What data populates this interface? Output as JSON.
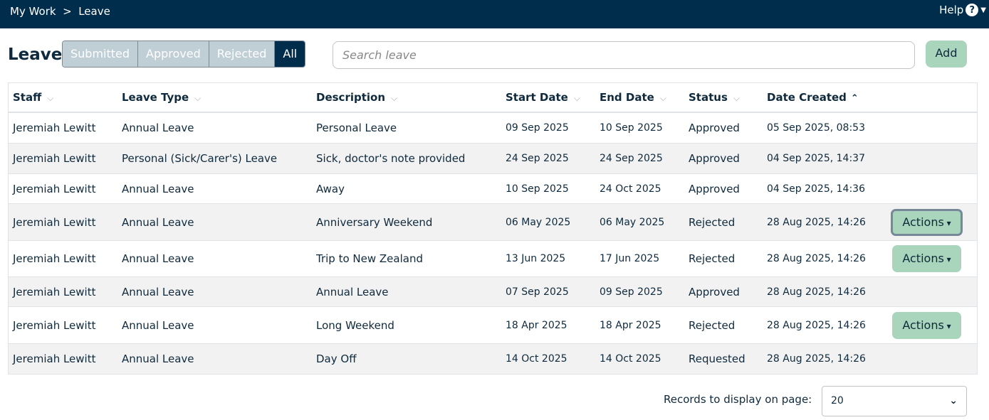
{
  "topbar": {
    "breadcrumb": "My Work  >  Leave",
    "help_label": "Help",
    "help_icon": "?"
  },
  "page": {
    "title": "Leave"
  },
  "filters": [
    {
      "label": "Submitted",
      "active": false
    },
    {
      "label": "Approved",
      "active": false
    },
    {
      "label": "Rejected",
      "active": false
    },
    {
      "label": "All",
      "active": true
    }
  ],
  "search": {
    "placeholder": "Search leave",
    "value": ""
  },
  "add_label": "Add",
  "table": {
    "columns": [
      "Staff",
      "Leave Type",
      "Description",
      "Start Date",
      "End Date",
      "Status",
      "Date Created"
    ],
    "sort": {
      "column": "Date Created",
      "direction": "ascending"
    },
    "rows": [
      {
        "staff": "Jeremiah Lewitt",
        "type": "Annual Leave",
        "desc": "Personal Leave",
        "start": "09 Sep 2025",
        "end": "10 Sep 2025",
        "status": "Approved",
        "created": "05 Sep 2025, 08:53"
      },
      {
        "staff": "Jeremiah Lewitt",
        "type": "Personal (Sick/Carer's) Leave",
        "desc": "Sick, doctor's note provided",
        "start": "24 Sep 2025",
        "end": "24 Sep 2025",
        "status": "Approved",
        "created": "04 Sep 2025, 14:37"
      },
      {
        "staff": "Jeremiah Lewitt",
        "type": "Annual Leave",
        "desc": "Away",
        "start": "10 Sep 2025",
        "end": "24 Oct 2025",
        "status": "Approved",
        "created": "04 Sep 2025, 14:36"
      },
      {
        "staff": "Jeremiah Lewitt",
        "type": "Annual Leave",
        "desc": "Anniversary Weekend",
        "start": "06 May 2025",
        "end": "06 May 2025",
        "status": "Rejected",
        "created": "28 Aug 2025, 14:26",
        "action": "Actions"
      },
      {
        "staff": "Jeremiah Lewitt",
        "type": "Annual Leave",
        "desc": "Trip to New Zealand",
        "start": "13 Jun 2025",
        "end": "17 Jun 2025",
        "status": "Rejected",
        "created": "28 Aug 2025, 14:26",
        "action": "Actions"
      },
      {
        "staff": "Jeremiah Lewitt",
        "type": "Annual Leave",
        "desc": "Annual Leave",
        "start": "07 Sep 2025",
        "end": "09 Sep 2025",
        "status": "Approved",
        "created": "28 Aug 2025, 14:26"
      },
      {
        "staff": "Jeremiah Lewitt",
        "type": "Annual Leave",
        "desc": "Long Weekend",
        "start": "18 Apr 2025",
        "end": "18 Apr 2025",
        "status": "Rejected",
        "created": "28 Aug 2025, 14:26",
        "action": "Actions"
      },
      {
        "staff": "Jeremiah Lewitt",
        "type": "Annual Leave",
        "desc": "Day Off",
        "start": "14 Oct 2025",
        "end": "14 Oct 2025",
        "status": "Requested",
        "created": "28 Aug 2025, 14:26"
      }
    ]
  },
  "pagination": {
    "label": "Records to display on page:",
    "value": "20"
  },
  "colors": {
    "navy": "#002d4b",
    "accent_green": "#a8d5bb",
    "filter_inactive": "#c0ced6"
  }
}
